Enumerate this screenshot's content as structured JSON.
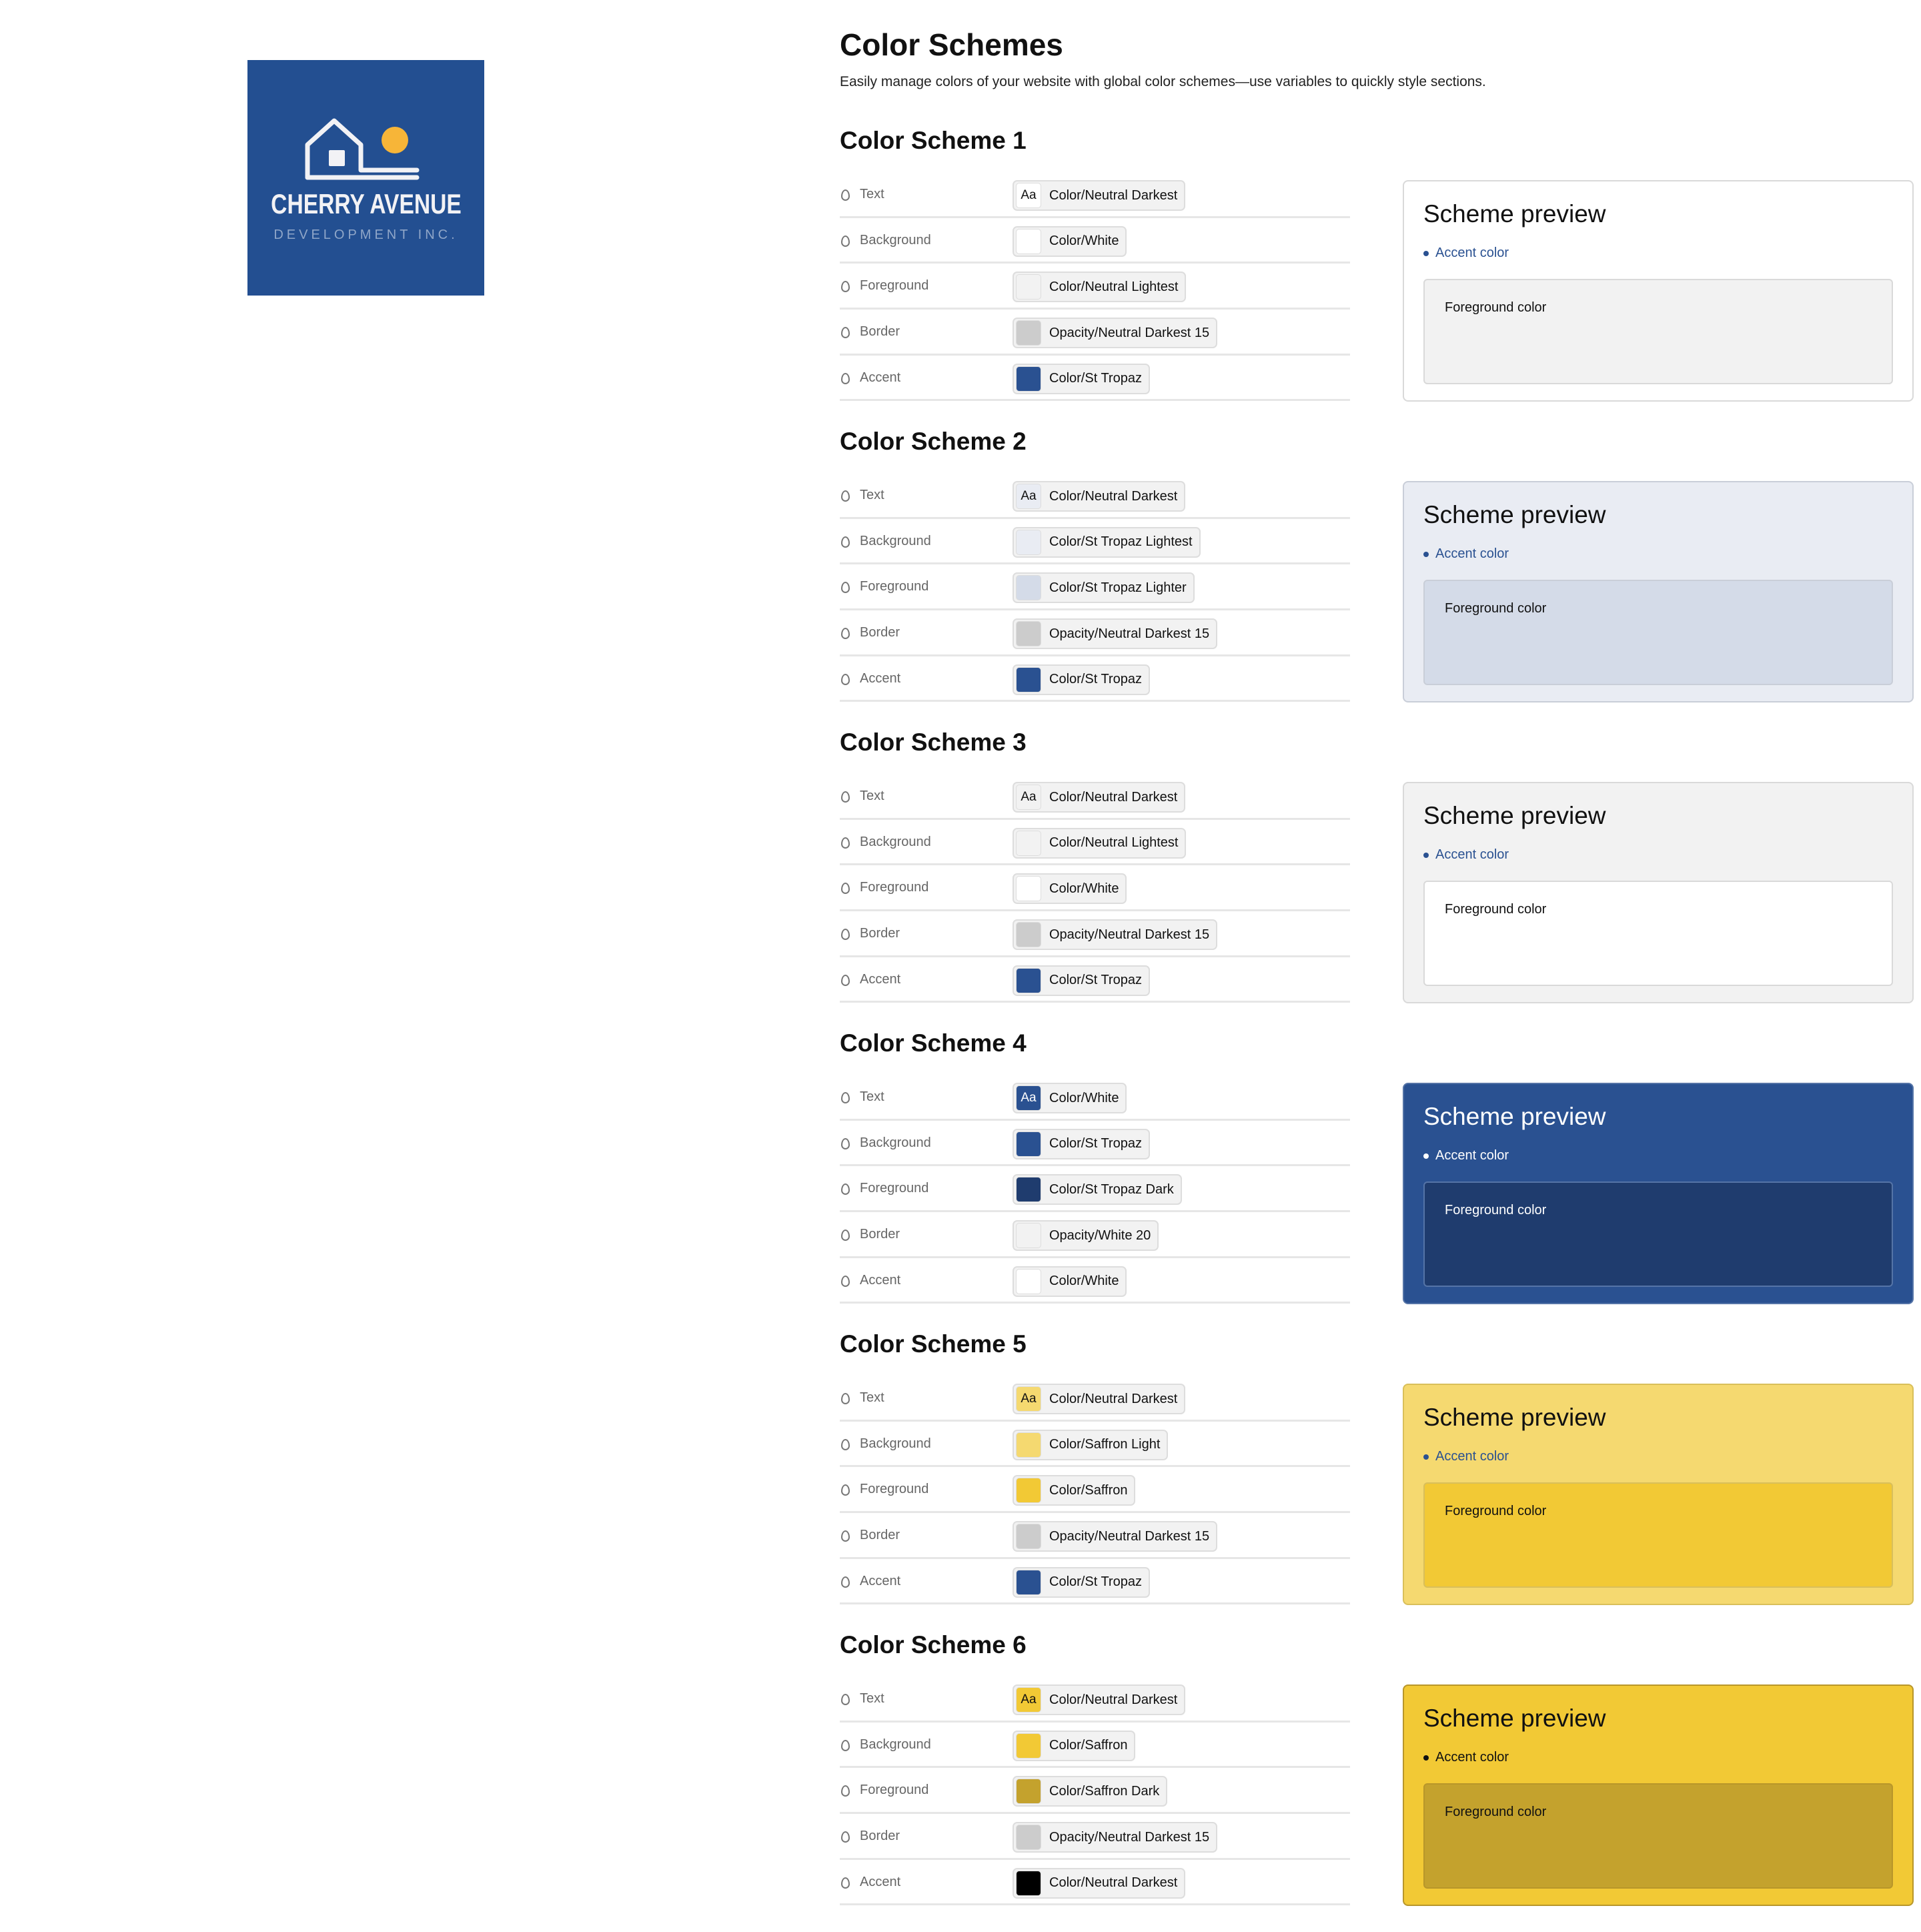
{
  "logo": {
    "line1": "CHERRY AVENUE",
    "line2": "DEVELOPMENT INC.",
    "bg": "#234f91",
    "sun": "#f7b538"
  },
  "page": {
    "title": "Color Schemes",
    "subtitle": "Easily manage colors of your website with global color schemes—use variables to quickly style sections."
  },
  "preview_labels": {
    "title": "Scheme preview",
    "accent": "Accent color",
    "foreground": "Foreground color"
  },
  "schemes": [
    {
      "name": "Color Scheme 1",
      "colors": {
        "text": "#111111",
        "bg": "#ffffff",
        "fg": "#f2f2f2",
        "border": "#d9d9d9",
        "accent": "#2a5191"
      },
      "rows": [
        {
          "label": "Text",
          "value": "Color/Neutral Darkest",
          "swatch": "#ffffff",
          "aa": "Aa"
        },
        {
          "label": "Background",
          "value": "Color/White",
          "swatch": "#ffffff"
        },
        {
          "label": "Foreground",
          "value": "Color/Neutral Lightest",
          "swatch": "#f2f2f2"
        },
        {
          "label": "Border",
          "value": "Opacity/Neutral Darkest 15",
          "swatch": "#cccccc"
        },
        {
          "label": "Accent",
          "value": "Color/St Tropaz",
          "swatch": "#2a5191"
        }
      ]
    },
    {
      "name": "Color Scheme 2",
      "colors": {
        "text": "#111111",
        "bg": "#e9ecf3",
        "fg": "#d4dbe8",
        "border": "#c9ced8",
        "accent": "#2a5191"
      },
      "rows": [
        {
          "label": "Text",
          "value": "Color/Neutral Darkest",
          "swatch": "#e9ecf3",
          "aa": "Aa"
        },
        {
          "label": "Background",
          "value": "Color/St Tropaz Lightest",
          "swatch": "#e9ecf3"
        },
        {
          "label": "Foreground",
          "value": "Color/St Tropaz Lighter",
          "swatch": "#d4dbe8"
        },
        {
          "label": "Border",
          "value": "Opacity/Neutral Darkest 15",
          "swatch": "#cccccc"
        },
        {
          "label": "Accent",
          "value": "Color/St Tropaz",
          "swatch": "#2a5191"
        }
      ]
    },
    {
      "name": "Color Scheme 3",
      "colors": {
        "text": "#111111",
        "bg": "#f2f2f2",
        "fg": "#ffffff",
        "border": "#d9d9d9",
        "accent": "#2a5191"
      },
      "rows": [
        {
          "label": "Text",
          "value": "Color/Neutral Darkest",
          "swatch": "#f2f2f2",
          "aa": "Aa"
        },
        {
          "label": "Background",
          "value": "Color/Neutral Lightest",
          "swatch": "#f2f2f2"
        },
        {
          "label": "Foreground",
          "value": "Color/White",
          "swatch": "#ffffff"
        },
        {
          "label": "Border",
          "value": "Opacity/Neutral Darkest 15",
          "swatch": "#cccccc"
        },
        {
          "label": "Accent",
          "value": "Color/St Tropaz",
          "swatch": "#2a5191"
        }
      ]
    },
    {
      "name": "Color Scheme 4",
      "colors": {
        "text": "#ffffff",
        "bg": "#2a5191",
        "fg": "#1f3c6e",
        "border": "#5574a7",
        "accent": "#ffffff"
      },
      "rows": [
        {
          "label": "Text",
          "value": "Color/White",
          "swatch": "#2a5191",
          "aa": "Aa",
          "aacolor": "#ffffff"
        },
        {
          "label": "Background",
          "value": "Color/St Tropaz",
          "swatch": "#2a5191"
        },
        {
          "label": "Foreground",
          "value": "Color/St Tropaz Dark",
          "swatch": "#1f3c6e"
        },
        {
          "label": "Border",
          "value": "Opacity/White 20",
          "swatch": "#f2f2f2"
        },
        {
          "label": "Accent",
          "value": "Color/White",
          "swatch": "#ffffff"
        }
      ]
    },
    {
      "name": "Color Scheme 5",
      "colors": {
        "text": "#111111",
        "bg": "#f5d970",
        "fg": "#f2c935",
        "border": "#d9bf5a",
        "accent": "#2a5191"
      },
      "rows": [
        {
          "label": "Text",
          "value": "Color/Neutral Darkest",
          "swatch": "#f5d970",
          "aa": "Aa"
        },
        {
          "label": "Background",
          "value": "Color/Saffron Light",
          "swatch": "#f5d970"
        },
        {
          "label": "Foreground",
          "value": "Color/Saffron",
          "swatch": "#f2c935"
        },
        {
          "label": "Border",
          "value": "Opacity/Neutral Darkest 15",
          "swatch": "#cccccc"
        },
        {
          "label": "Accent",
          "value": "Color/St Tropaz",
          "swatch": "#2a5191"
        }
      ]
    },
    {
      "name": "Color Scheme 6",
      "colors": {
        "text": "#111111",
        "bg": "#f2c935",
        "fg": "#c4a22d",
        "border": "#b8962a",
        "accent": "#111111"
      },
      "rows": [
        {
          "label": "Text",
          "value": "Color/Neutral Darkest",
          "swatch": "#f2c935",
          "aa": "Aa"
        },
        {
          "label": "Background",
          "value": "Color/Saffron",
          "swatch": "#f2c935"
        },
        {
          "label": "Foreground",
          "value": "Color/Saffron Dark",
          "swatch": "#c4a22d"
        },
        {
          "label": "Border",
          "value": "Opacity/Neutral Darkest 15",
          "swatch": "#cccccc"
        },
        {
          "label": "Accent",
          "value": "Color/Neutral Darkest",
          "swatch": "#000000"
        }
      ]
    }
  ]
}
